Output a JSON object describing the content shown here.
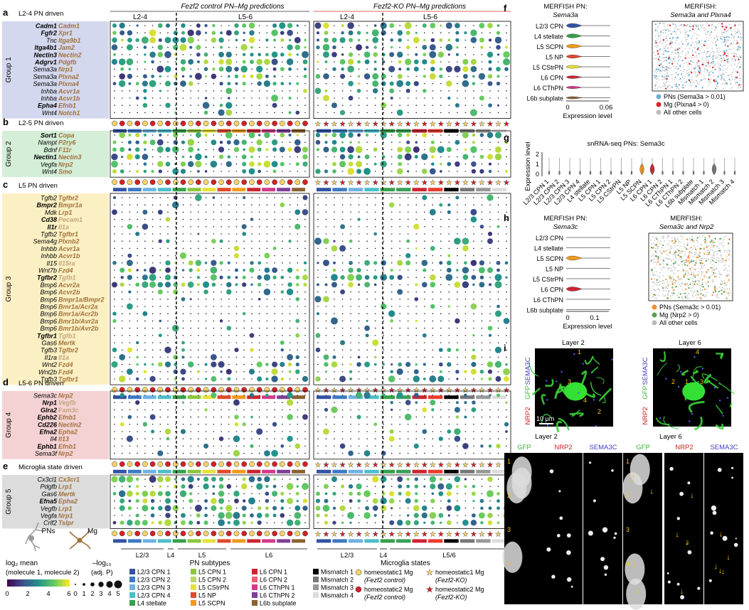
{
  "panel_letters": [
    "a",
    "b",
    "c",
    "d",
    "e",
    "f",
    "g",
    "h",
    "i"
  ],
  "header": {
    "control_title": "Fezf2 control PN–Mg predictions",
    "ko_title": "Fezf2-KO PN–Mg predictions",
    "l24": "L2-4",
    "l56": "L5-6"
  },
  "groups": [
    {
      "subtitle": "L2-4 PN driven",
      "name": "Group 1",
      "color": "#d4d8ee",
      "pairs": [
        [
          "Cadm1",
          "Cadm1",
          1,
          1
        ],
        [
          "Fgfr2",
          "Xpr1",
          1,
          0
        ],
        [
          "Tnc",
          "Itga9b1",
          0,
          0
        ],
        [
          "Itga4b1",
          "Jam2",
          1,
          0
        ],
        [
          "Nectin3",
          "Nectin2",
          1,
          0
        ],
        [
          "Adgrv1",
          "Pdgfb",
          1,
          0
        ],
        [
          "Sema3a",
          "Nrp1",
          0,
          0
        ],
        [
          "Sema3a",
          "Plxna2",
          0,
          0
        ],
        [
          "Sema3a",
          "Plxna4",
          0,
          0
        ],
        [
          "Inhba",
          "Acvr1a",
          0,
          0
        ],
        [
          "Inhba",
          "Acvr1b",
          0,
          0
        ],
        [
          "Epha4",
          "Efnb1",
          1,
          0
        ],
        [
          "Wnt4",
          "Notch1",
          0,
          0
        ]
      ]
    },
    {
      "subtitle": "L2-5 PN driven",
      "name": "Group 2",
      "color": "#d4eed8",
      "pairs": [
        [
          "Sort1",
          "Copa",
          1,
          0
        ],
        [
          "Nampt",
          "P2ry6",
          0,
          0
        ],
        [
          "Bdnf",
          "F11r",
          0,
          0
        ],
        [
          "Nectin1",
          "Nectin3",
          1,
          0
        ],
        [
          "Vegfa",
          "Nrp2",
          0,
          0
        ],
        [
          "Wnt4",
          "Smo",
          0,
          0
        ]
      ]
    },
    {
      "subtitle": "L5 PN driven",
      "name": "Group 3",
      "color": "#fbf0c4",
      "pairs": [
        [
          "Tgfb2",
          "Tgfbr2",
          0,
          0
        ],
        [
          "Bmpr2",
          "Bmpr1a",
          1,
          0
        ],
        [
          "Mdk",
          "Lrp1",
          0,
          0
        ],
        [
          "Cd38",
          "Pecam1",
          1,
          2
        ],
        [
          "Il1r",
          "Il1a",
          1,
          2
        ],
        [
          "Tgfb2",
          "Tgfbr1",
          0,
          0
        ],
        [
          "Sema4g",
          "Plxnb2",
          0,
          0
        ],
        [
          "Inhbb",
          "Acvr1a",
          0,
          0
        ],
        [
          "Inhbb",
          "Acvr1b",
          0,
          0
        ],
        [
          "Il15",
          "Il15ra",
          0,
          2
        ],
        [
          "Wnt7b",
          "Fzd4",
          0,
          0
        ],
        [
          "Tgfbr2",
          "Tgfb1",
          1,
          2
        ],
        [
          "Bmp6",
          "Acvr2a",
          0,
          0
        ],
        [
          "Bmp6",
          "Acvr2b",
          0,
          0
        ],
        [
          "Bmp6",
          "Bmpr1a/Bmpr2",
          0,
          0
        ],
        [
          "Bmp6",
          "Bmr1a/Acr2a",
          0,
          0
        ],
        [
          "Bmp6",
          "Bmr1a/Acr2b",
          0,
          0
        ],
        [
          "Bmp6",
          "Bmr1b/Avr2a",
          0,
          0
        ],
        [
          "Bmp6",
          "Bmr1b/Avr2b",
          0,
          0
        ],
        [
          "Tgfbr1",
          "Tgfb1",
          1,
          2
        ],
        [
          "Gas6",
          "Mertk",
          0,
          0
        ],
        [
          "Tgfb3",
          "Tgfbr2",
          0,
          0
        ],
        [
          "Il1ra",
          "Il1a",
          0,
          2
        ],
        [
          "Wnt2",
          "Fzd4",
          0,
          0
        ],
        [
          "Wnt2b",
          "Fzd4",
          0,
          0
        ],
        [
          "Tgfb3",
          "Tgfbr1",
          0,
          0
        ]
      ]
    },
    {
      "subtitle": "L5-6 PN driven",
      "name": "Group 4",
      "color": "#f4d2d4",
      "pairs": [
        [
          "Sema3c",
          "Nrp2",
          0,
          0
        ],
        [
          "Nrp1",
          "Vegfb",
          1,
          2
        ],
        [
          "Glra2",
          "Fam3c",
          1,
          2
        ],
        [
          "Ephb2",
          "Efnb1",
          1,
          0
        ],
        [
          "Cd226",
          "Nectin2",
          1,
          0
        ],
        [
          "Efna2",
          "Epha2",
          1,
          0
        ],
        [
          "Il4",
          "Il13",
          0,
          0
        ],
        [
          "Ephb1",
          "Efnb1",
          1,
          0
        ],
        [
          "Sema3f",
          "Nrp2",
          0,
          0
        ]
      ]
    },
    {
      "subtitle": "Microglia state driven",
      "name": "Group 5",
      "color": "#dcdcdc",
      "pairs": [
        [
          "Cx3cl1",
          "Cx3cr1",
          0,
          0
        ],
        [
          "Pdgfb",
          "Lrp1",
          0,
          0
        ],
        [
          "Gas6",
          "Mertk",
          0,
          0
        ],
        [
          "Efna5",
          "Epha2",
          1,
          0
        ],
        [
          "Vegfb",
          "Lrp1",
          0,
          0
        ],
        [
          "Vegfa",
          "Nrp1",
          0,
          0
        ],
        [
          "Crlf2",
          "Tslpr",
          0,
          0
        ]
      ]
    }
  ],
  "subtype_colors_ctrl": [
    "#3253a4",
    "#3d79c3",
    "#6fb2e3",
    "#4bbfcb",
    "#36a14a",
    "#8dc63f",
    "#e6e237",
    "#e24a2a",
    "#f29a1a",
    "#cc2531",
    "#d23a8a",
    "#7f3e98",
    "#8a6231"
  ],
  "subtype_colors_ko": [
    "#3253a4",
    "#3d79c3",
    "#6fb2e3",
    "#4bbfcb",
    "#36a14a",
    "#3aa05a",
    "#cc2531",
    "#ea3c2e",
    "#000000",
    "#777777",
    "#999999",
    "#dcdcdc"
  ],
  "layer_labels": [
    "L2/3",
    "L4",
    "L5",
    "L6",
    "L2/3",
    "L4",
    "L5/6"
  ],
  "legend": {
    "pns_label": "PNs",
    "mg_label": "Mg",
    "log2_title": "log₂ mean",
    "log2_sub": "(molecule 1, molecule 2)",
    "colorbar_ticks": [
      "0",
      "2",
      "4",
      "6"
    ],
    "neglog_title": "–log₁₀",
    "neglog_sub": "(adj. P)",
    "size_ticks": [
      "0",
      "1",
      "2",
      "3",
      "4",
      "5"
    ],
    "pn_title": "PN subtypes",
    "pn_items": [
      {
        "label": "L2/3 CPN 1",
        "color": "#3253a4"
      },
      {
        "label": "L2/3 CPN 2",
        "color": "#3d79c3"
      },
      {
        "label": "L2/3 CPN 3",
        "color": "#6fb2e3"
      },
      {
        "label": "L2/3 CPN 4",
        "color": "#4bbfcb"
      },
      {
        "label": "L4 stellate",
        "color": "#36a14a"
      },
      {
        "label": "L5 CPN 1",
        "color": "#8dc63f"
      },
      {
        "label": "L5 CPN 2",
        "color": "#b8d96a"
      },
      {
        "label": "L5 CStrPN",
        "color": "#e6e237"
      },
      {
        "label": "L5 NP",
        "color": "#e24a2a"
      },
      {
        "label": "L5 SCPN",
        "color": "#f29a1a"
      },
      {
        "label": "L6 CPN 1",
        "color": "#cc2531"
      },
      {
        "label": "L6 CPN 2",
        "color": "#e96075"
      },
      {
        "label": "L6 CThPN 1",
        "color": "#d23a8a"
      },
      {
        "label": "L6 CThPN 2",
        "color": "#7f3e98"
      },
      {
        "label": "L6b subplate",
        "color": "#8a6231"
      },
      {
        "label": "Mismatch 1",
        "color": "#000000"
      },
      {
        "label": "Mismatch 2",
        "color": "#777777"
      },
      {
        "label": "Mismatch 3",
        "color": "#999999"
      },
      {
        "label": "Mismatch 4",
        "color": "#dcdcdc"
      }
    ],
    "mg_title": "Microglia states",
    "mg_items": [
      {
        "label": "homeostatic1 Mg",
        "sub": "(Fezf2 control)"
      },
      {
        "label": "homeostatic1 Mg",
        "sub": "(Fezf2-KO)"
      },
      {
        "label": "homeostatic2 Mg",
        "sub": "(Fezf2 control)"
      },
      {
        "label": "homeostatic2 Mg",
        "sub": "(Fezf2-KO)"
      }
    ]
  },
  "panel_f": {
    "title_left": "MERFISH PN:",
    "gene": "Sema3a",
    "title_right": "MERFISH:",
    "right_gene": "Sema3a and Plxna4",
    "cell_types": [
      "L2/3 CPN",
      "L4 stellate",
      "L5 SCPN",
      "L5 NP",
      "L5 CStrPN",
      "L6 CPN",
      "L6 CThPN",
      "L6b subplate"
    ],
    "violin_colors": [
      "#3253a4",
      "#36a14a",
      "#f29a1a",
      "#e24a2a",
      "#e6e237",
      "#cc2531",
      "#d23a8a",
      "#8a6231"
    ],
    "widths": [
      1.0,
      0.35,
      0.25,
      0.25,
      0.2,
      0.25,
      0.2,
      0.6
    ],
    "ticks": [
      "0",
      "0.06"
    ],
    "xlabel": "Expression level",
    "legend": [
      "PNs (Sema3a > 0.01)",
      "Mg (Plxna4 > 0)",
      "All other cells"
    ],
    "legend_colors": [
      "#6baed6",
      "#d62728",
      "#bbbbbb"
    ]
  },
  "panel_g": {
    "title": "snRNA-seq PNs: Sema3c",
    "ylabel": "Expression level",
    "yticks": [
      "0",
      "1",
      "2"
    ],
    "cell_types": [
      "L2/3 CPN 1",
      "L2/3 CPN 2",
      "L2/3 CPN 3",
      "L2/3 CPN 4",
      "L4 stellate",
      "L5 CPN 1",
      "L5 CPN 2",
      "L5 CStrPN",
      "L5 NP",
      "L5 SCPN",
      "L6 CPN 1",
      "L6 CPN 2",
      "L6 CThPN 1",
      "L6 CThPN 2",
      "L6b subplate",
      "Mismatch 1",
      "Mismatch 2",
      "Mismatch 3",
      "Mismatch 4"
    ],
    "highlight": {
      "9": "#f29a1a",
      "10": "#cc2531",
      "16": "#777777"
    }
  },
  "panel_h": {
    "title_left": "MERFISH PN:",
    "gene": "Sema3c",
    "title_right": "MERFISH:",
    "right_gene": "Sema3c and Nrp2",
    "cell_types": [
      "L2/3 CPN",
      "L4 stellate",
      "L5 SCPN",
      "L5 NP",
      "L5 CStrPN",
      "L6 CPN",
      "L6 CThPN",
      "L6b subplate"
    ],
    "ticks": [
      "0",
      "0.1"
    ],
    "xlabel": "Expression level",
    "legend": [
      "PNs (Sema3c > 0.01)",
      "Mg (Nrp2 > 0)",
      "All other cells"
    ],
    "legend_colors": [
      "#f28e2b",
      "#59a14f",
      "#bbbbbb"
    ]
  },
  "panel_i": {
    "layer2": "Layer 2",
    "layer6": "Layer 6",
    "gfp": "GFP",
    "nrp2": "NRP2",
    "sema3c": "SEMA3C",
    "scale": "10 μm",
    "l2_marks": [
      "1",
      "2",
      "3",
      "4"
    ],
    "l6_marks": [
      "1",
      "2",
      "3",
      "4"
    ]
  }
}
